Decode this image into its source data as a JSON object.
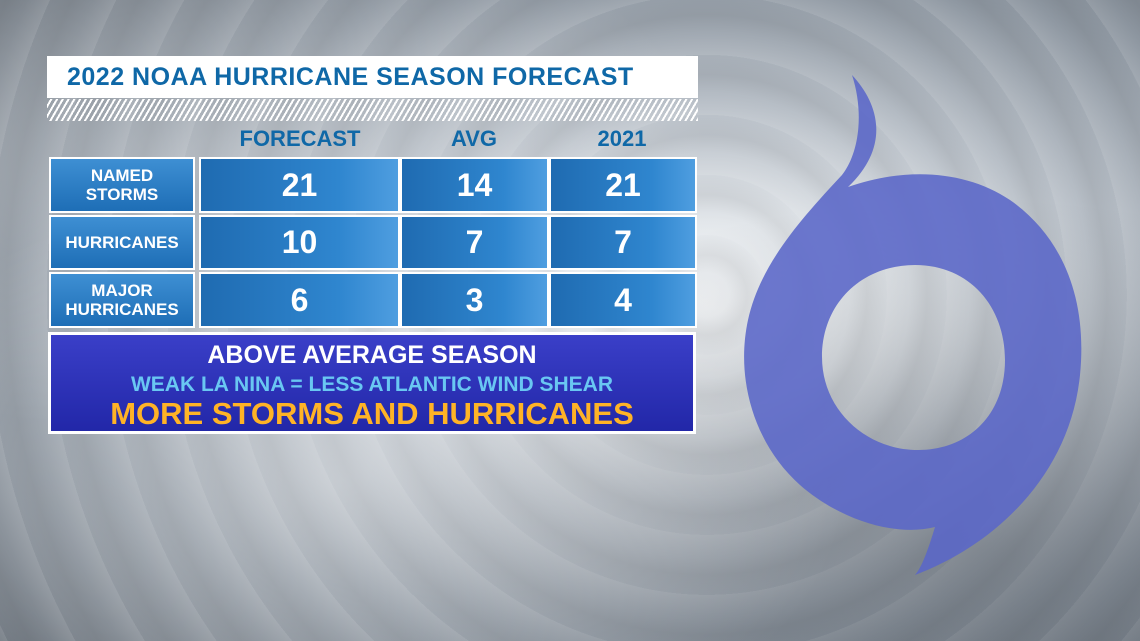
{
  "title": "2022 NOAA HURRICANE SEASON FORECAST",
  "columns": [
    "FORECAST",
    "AVG",
    "2021"
  ],
  "rows": [
    {
      "label_line1": "NAMED",
      "label_line2": "STORMS",
      "values": [
        "21",
        "14",
        "21"
      ]
    },
    {
      "label_line1": "HURRICANES",
      "label_line2": "",
      "values": [
        "10",
        "7",
        "7"
      ]
    },
    {
      "label_line1": "MAJOR",
      "label_line2": "HURRICANES",
      "values": [
        "6",
        "3",
        "4"
      ]
    }
  ],
  "summary": {
    "headline": "ABOVE AVERAGE SEASON",
    "reason": "WEAK LA NINA = LESS ATLANTIC WIND SHEAR",
    "outcome": "MORE STORMS AND HURRICANES"
  },
  "colors": {
    "title_text": "#0f68a7",
    "cell_blue": "#2f86cf",
    "summary_bg": "#2a2fb8",
    "summary_reason": "#69c7f2",
    "summary_outcome": "#ffb326",
    "symbol": "#5a66c8"
  },
  "icons": {
    "hurricane_symbol": "hurricane-icon"
  }
}
